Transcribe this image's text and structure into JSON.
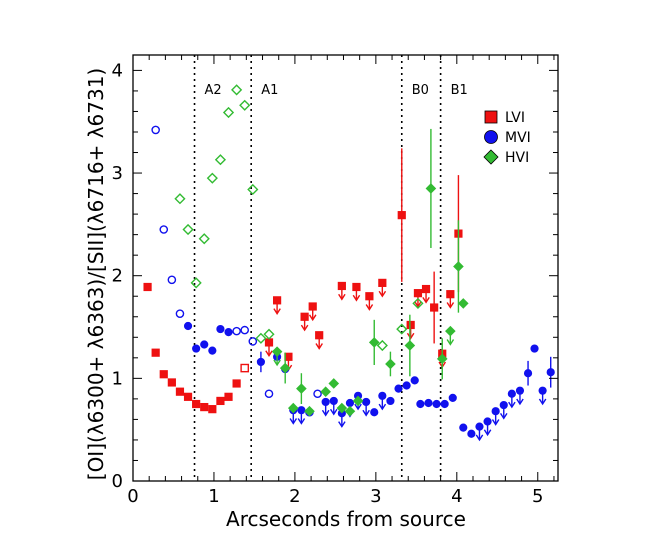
{
  "chart_data": {
    "type": "scatter",
    "xlabel": "Arcseconds from source",
    "ylabel": "[OI](λ6300+ λ6363)/[SII](λ6716+ λ6731)",
    "xlim": [
      0,
      5.25
    ],
    "ylim": [
      0,
      4.15
    ],
    "x_ticks": [
      "0",
      "1",
      "2",
      "3",
      "4",
      "5"
    ],
    "y_ticks": [
      "0",
      "1",
      "2",
      "3",
      "4"
    ],
    "vlines": [
      {
        "x": 0.76,
        "label": "A2"
      },
      {
        "x": 1.46,
        "label": "A1"
      },
      {
        "x": 3.32,
        "label": "B0"
      },
      {
        "x": 3.8,
        "label": "B1"
      }
    ],
    "legend": [
      {
        "label": "LVI",
        "color": "#ee1111",
        "marker": "square"
      },
      {
        "label": "MVI",
        "color": "#1111ee",
        "marker": "circle"
      },
      {
        "label": "HVI",
        "color": "#33bb33",
        "marker": "diamond"
      }
    ],
    "series": [
      {
        "name": "LVI",
        "color": "#ee1111",
        "marker": "square",
        "points": [
          {
            "x": 0.18,
            "y": 1.89
          },
          {
            "x": 0.28,
            "y": 1.25
          },
          {
            "x": 0.38,
            "y": 1.04
          },
          {
            "x": 0.48,
            "y": 0.96
          },
          {
            "x": 0.58,
            "y": 0.87
          },
          {
            "x": 0.68,
            "y": 0.82
          },
          {
            "x": 0.78,
            "y": 0.75
          },
          {
            "x": 0.88,
            "y": 0.72
          },
          {
            "x": 0.98,
            "y": 0.7
          },
          {
            "x": 1.08,
            "y": 0.78
          },
          {
            "x": 1.18,
            "y": 0.82
          },
          {
            "x": 1.28,
            "y": 0.95
          },
          {
            "x": 1.38,
            "y": 1.1,
            "open": true
          },
          {
            "x": 1.68,
            "y": 1.35,
            "up": true,
            "err": 0.12
          },
          {
            "x": 1.78,
            "y": 1.76,
            "up": true,
            "err": 0.12
          },
          {
            "x": 1.92,
            "y": 1.21,
            "up": true,
            "err": 0.12
          },
          {
            "x": 2.12,
            "y": 1.6,
            "up": true,
            "err": 0.12
          },
          {
            "x": 2.22,
            "y": 1.7,
            "up": true,
            "err": 0.12
          },
          {
            "x": 2.3,
            "y": 1.42,
            "up": true,
            "err": 0.12
          },
          {
            "x": 2.58,
            "y": 1.9,
            "up": true,
            "err": 0.12
          },
          {
            "x": 2.76,
            "y": 1.89,
            "up": true,
            "err": 0.12
          },
          {
            "x": 2.92,
            "y": 1.8,
            "up": true,
            "err": 0.12
          },
          {
            "x": 3.08,
            "y": 1.93,
            "up": true,
            "err": 0.12
          },
          {
            "x": 3.32,
            "y": 2.59,
            "err": 0.65
          },
          {
            "x": 3.43,
            "y": 1.52,
            "up": true,
            "err": 0.12
          },
          {
            "x": 3.52,
            "y": 1.83,
            "up": true,
            "err": 0.12
          },
          {
            "x": 3.62,
            "y": 1.87,
            "up": true,
            "err": 0.12
          },
          {
            "x": 3.72,
            "y": 1.69,
            "err": 0.35
          },
          {
            "x": 3.82,
            "y": 1.24,
            "up": true,
            "err": 0.12
          },
          {
            "x": 3.92,
            "y": 1.82,
            "up": true,
            "err": 0.12
          },
          {
            "x": 4.02,
            "y": 2.41,
            "err": 0.57
          }
        ]
      },
      {
        "name": "MVI",
        "color": "#1111ee",
        "marker": "circle",
        "points": [
          {
            "x": 0.28,
            "y": 3.42,
            "open": true
          },
          {
            "x": 0.38,
            "y": 2.45,
            "open": true
          },
          {
            "x": 0.48,
            "y": 1.96,
            "open": true
          },
          {
            "x": 0.58,
            "y": 1.63,
            "open": true
          },
          {
            "x": 0.68,
            "y": 1.51
          },
          {
            "x": 0.78,
            "y": 1.29
          },
          {
            "x": 0.88,
            "y": 1.33
          },
          {
            "x": 0.98,
            "y": 1.27
          },
          {
            "x": 1.08,
            "y": 1.48
          },
          {
            "x": 1.18,
            "y": 1.45
          },
          {
            "x": 1.28,
            "y": 1.46,
            "open": true
          },
          {
            "x": 1.38,
            "y": 1.47,
            "open": true
          },
          {
            "x": 1.48,
            "y": 1.36,
            "open": true
          },
          {
            "x": 1.58,
            "y": 1.16,
            "err": 0.1
          },
          {
            "x": 1.68,
            "y": 0.85,
            "open": true
          },
          {
            "x": 1.78,
            "y": 1.21
          },
          {
            "x": 1.88,
            "y": 1.09
          },
          {
            "x": 1.98,
            "y": 0.69,
            "up": true,
            "err": 0.12
          },
          {
            "x": 2.08,
            "y": 0.69,
            "up": true,
            "err": 0.12
          },
          {
            "x": 2.18,
            "y": 0.67,
            "open": true
          },
          {
            "x": 2.28,
            "y": 0.85,
            "open": true
          },
          {
            "x": 2.38,
            "y": 0.77,
            "up": true,
            "err": 0.12
          },
          {
            "x": 2.48,
            "y": 0.78,
            "up": true,
            "err": 0.12
          },
          {
            "x": 2.58,
            "y": 0.66,
            "up": true,
            "err": 0.12
          },
          {
            "x": 2.68,
            "y": 0.76,
            "up": true,
            "err": 0.12
          },
          {
            "x": 2.78,
            "y": 0.83,
            "up": true,
            "err": 0.12
          },
          {
            "x": 2.88,
            "y": 0.77,
            "up": true,
            "err": 0.12
          },
          {
            "x": 2.98,
            "y": 0.67
          },
          {
            "x": 3.08,
            "y": 0.83,
            "up": true,
            "err": 0.12
          },
          {
            "x": 3.18,
            "y": 0.78
          },
          {
            "x": 3.28,
            "y": 0.9
          },
          {
            "x": 3.38,
            "y": 0.93
          },
          {
            "x": 3.48,
            "y": 0.98
          },
          {
            "x": 3.55,
            "y": 0.75
          },
          {
            "x": 3.65,
            "y": 0.76
          },
          {
            "x": 3.75,
            "y": 0.75
          },
          {
            "x": 3.85,
            "y": 0.75
          },
          {
            "x": 3.95,
            "y": 0.81
          },
          {
            "x": 4.08,
            "y": 0.52
          },
          {
            "x": 4.18,
            "y": 0.46
          },
          {
            "x": 4.28,
            "y": 0.53,
            "up": true,
            "err": 0.12
          },
          {
            "x": 4.38,
            "y": 0.58,
            "up": true,
            "err": 0.12
          },
          {
            "x": 4.48,
            "y": 0.68,
            "up": true,
            "err": 0.12
          },
          {
            "x": 4.58,
            "y": 0.74,
            "up": true,
            "err": 0.12
          },
          {
            "x": 4.68,
            "y": 0.85,
            "up": true,
            "err": 0.12
          },
          {
            "x": 4.78,
            "y": 0.88,
            "up": true,
            "err": 0.12
          },
          {
            "x": 4.88,
            "y": 1.05,
            "err": 0.12
          },
          {
            "x": 4.96,
            "y": 1.29
          },
          {
            "x": 5.06,
            "y": 0.88,
            "up": true,
            "err": 0.12
          },
          {
            "x": 5.16,
            "y": 1.06,
            "err": 0.15
          }
        ]
      },
      {
        "name": "HVI",
        "color": "#33bb33",
        "marker": "diamond",
        "points": [
          {
            "x": 0.58,
            "y": 2.75,
            "open": true
          },
          {
            "x": 0.68,
            "y": 2.45,
            "open": true
          },
          {
            "x": 0.78,
            "y": 1.93,
            "open": true
          },
          {
            "x": 0.88,
            "y": 2.36,
            "open": true
          },
          {
            "x": 0.98,
            "y": 2.95,
            "open": true
          },
          {
            "x": 1.08,
            "y": 3.13,
            "open": true
          },
          {
            "x": 1.18,
            "y": 3.59,
            "open": true
          },
          {
            "x": 1.28,
            "y": 3.81,
            "open": true
          },
          {
            "x": 1.38,
            "y": 3.66,
            "open": true
          },
          {
            "x": 1.48,
            "y": 2.84,
            "open": true
          },
          {
            "x": 1.58,
            "y": 1.39,
            "open": true
          },
          {
            "x": 1.68,
            "y": 1.43,
            "open": true
          },
          {
            "x": 1.78,
            "y": 1.26,
            "up": true,
            "err": 0.12
          },
          {
            "x": 1.88,
            "y": 1.1,
            "err": 0.15
          },
          {
            "x": 1.98,
            "y": 0.71
          },
          {
            "x": 2.08,
            "y": 0.9,
            "err": 0.15
          },
          {
            "x": 2.18,
            "y": 0.68
          },
          {
            "x": 2.38,
            "y": 0.87
          },
          {
            "x": 2.48,
            "y": 0.95
          },
          {
            "x": 2.58,
            "y": 0.71
          },
          {
            "x": 2.68,
            "y": 0.68
          },
          {
            "x": 2.78,
            "y": 0.78
          },
          {
            "x": 2.98,
            "y": 1.35,
            "err": 0.22
          },
          {
            "x": 3.08,
            "y": 1.32,
            "open": true
          },
          {
            "x": 3.18,
            "y": 1.14,
            "err": 0.12
          },
          {
            "x": 3.32,
            "y": 1.48,
            "open": true
          },
          {
            "x": 3.42,
            "y": 1.32,
            "err": 0.3
          },
          {
            "x": 3.52,
            "y": 1.73,
            "open": true
          },
          {
            "x": 3.68,
            "y": 2.85,
            "err": 0.58
          },
          {
            "x": 3.82,
            "y": 1.19,
            "err": 0.2
          },
          {
            "x": 3.92,
            "y": 1.46,
            "up": true,
            "err": 0.12
          },
          {
            "x": 4.02,
            "y": 2.09,
            "err": 0.45
          },
          {
            "x": 4.08,
            "y": 1.73
          }
        ]
      }
    ]
  }
}
